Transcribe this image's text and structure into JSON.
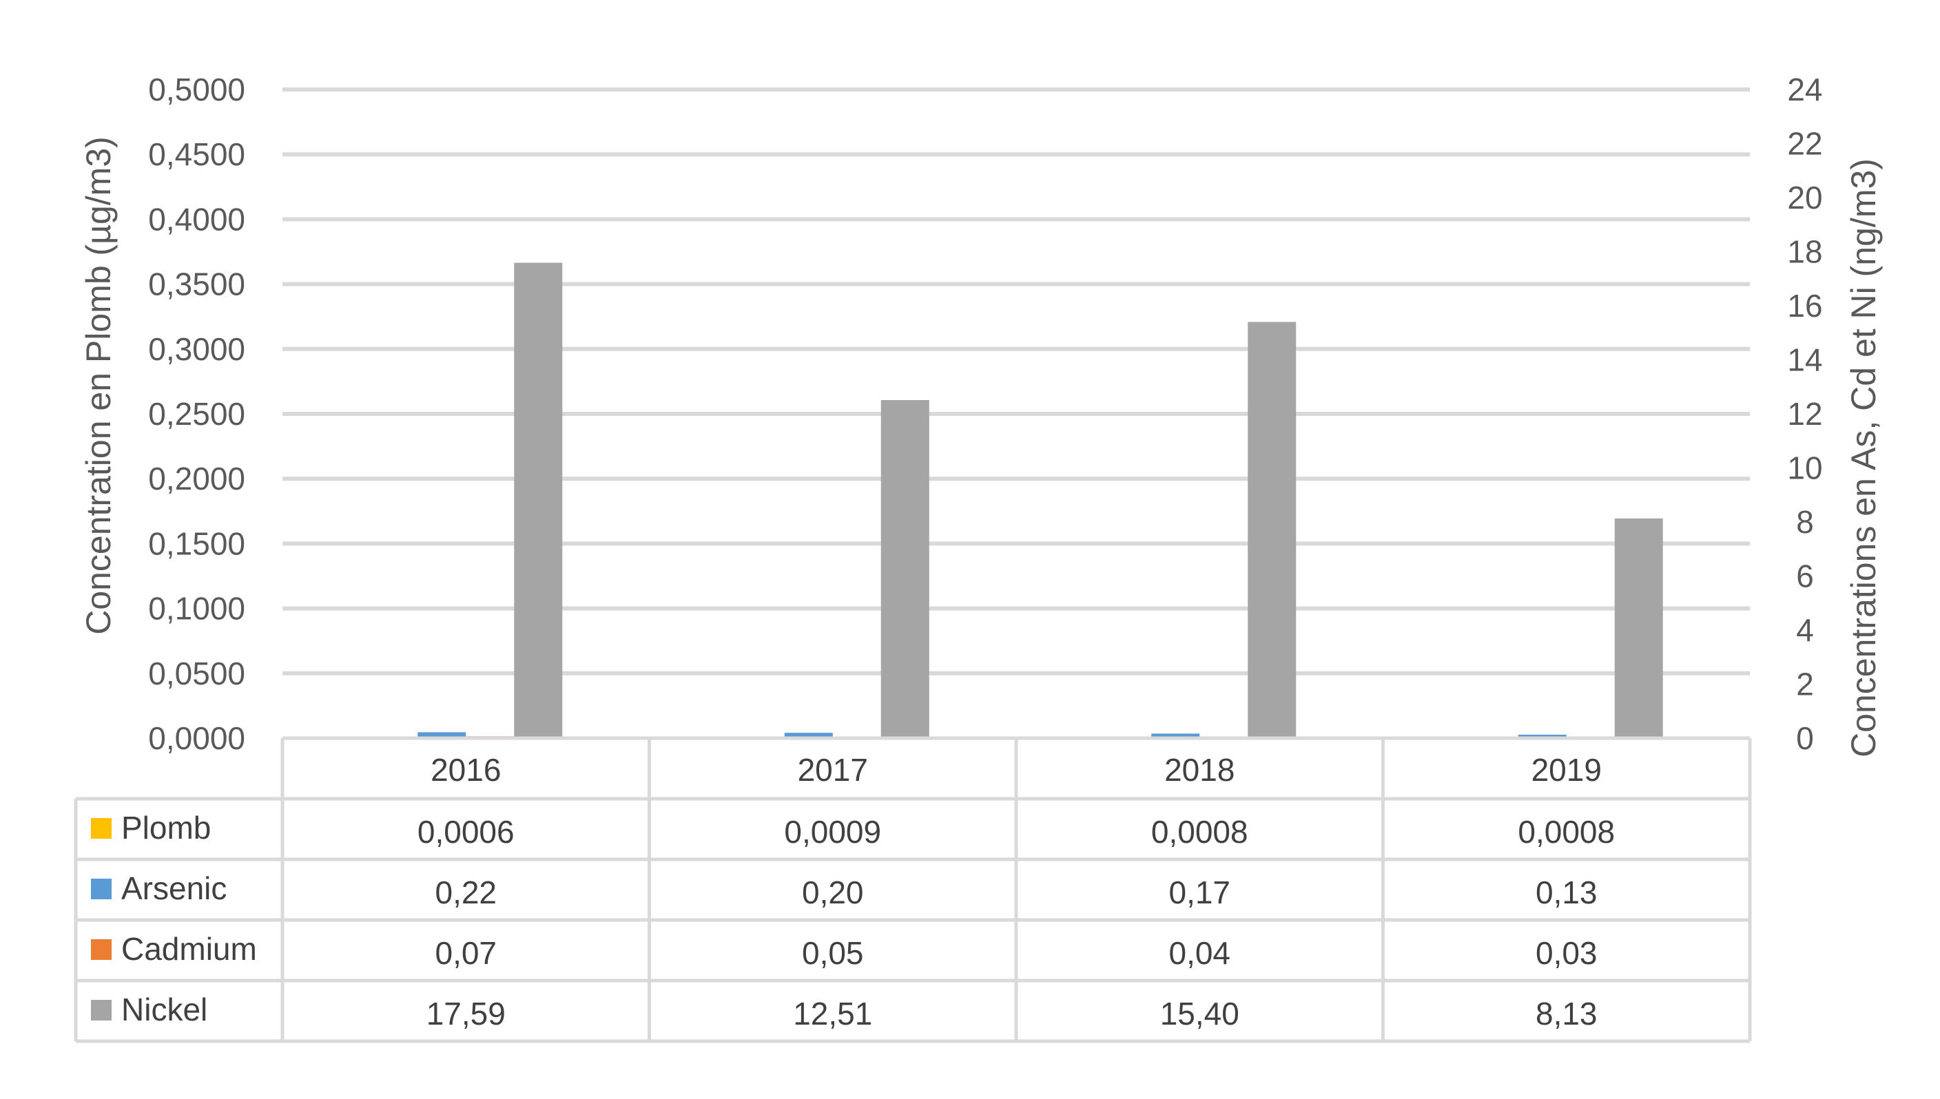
{
  "chart_data": {
    "type": "bar",
    "categories": [
      "2016",
      "2017",
      "2018",
      "2019"
    ],
    "y_left": {
      "label": "Concentration en Plomb (µg/m3)",
      "range": [
        0,
        0.5
      ],
      "ticks": [
        "0,0000",
        "0,0500",
        "0,1000",
        "0,1500",
        "0,2000",
        "0,2500",
        "0,3000",
        "0,3500",
        "0,4000",
        "0,4500",
        "0,5000"
      ]
    },
    "y_right": {
      "label": "Concentrations en As, Cd et Ni (ng/m3)",
      "range": [
        0,
        24
      ],
      "ticks": [
        "0",
        "2",
        "4",
        "6",
        "8",
        "10",
        "12",
        "14",
        "16",
        "18",
        "20",
        "22",
        "24"
      ]
    },
    "grid": true,
    "series": [
      {
        "name": "Plomb",
        "axis": "left",
        "color": "#FFC000",
        "values": [
          0.0006,
          0.0009,
          0.0008,
          0.0008
        ],
        "labels": [
          "0,0006",
          "0,0009",
          "0,0008",
          "0,0008"
        ]
      },
      {
        "name": "Arsenic",
        "axis": "right",
        "color": "#5B9BD5",
        "values": [
          0.22,
          0.2,
          0.17,
          0.13
        ],
        "labels": [
          "0,22",
          "0,20",
          "0,17",
          "0,13"
        ]
      },
      {
        "name": "Cadmium",
        "axis": "right",
        "color": "#ED7D31",
        "values": [
          0.07,
          0.05,
          0.04,
          0.03
        ],
        "labels": [
          "0,07",
          "0,05",
          "0,04",
          "0,03"
        ]
      },
      {
        "name": "Nickel",
        "axis": "right",
        "color": "#A5A5A5",
        "values": [
          17.59,
          12.51,
          15.4,
          8.13
        ],
        "labels": [
          "17,59",
          "12,51",
          "15,40",
          "8,13"
        ]
      }
    ]
  }
}
